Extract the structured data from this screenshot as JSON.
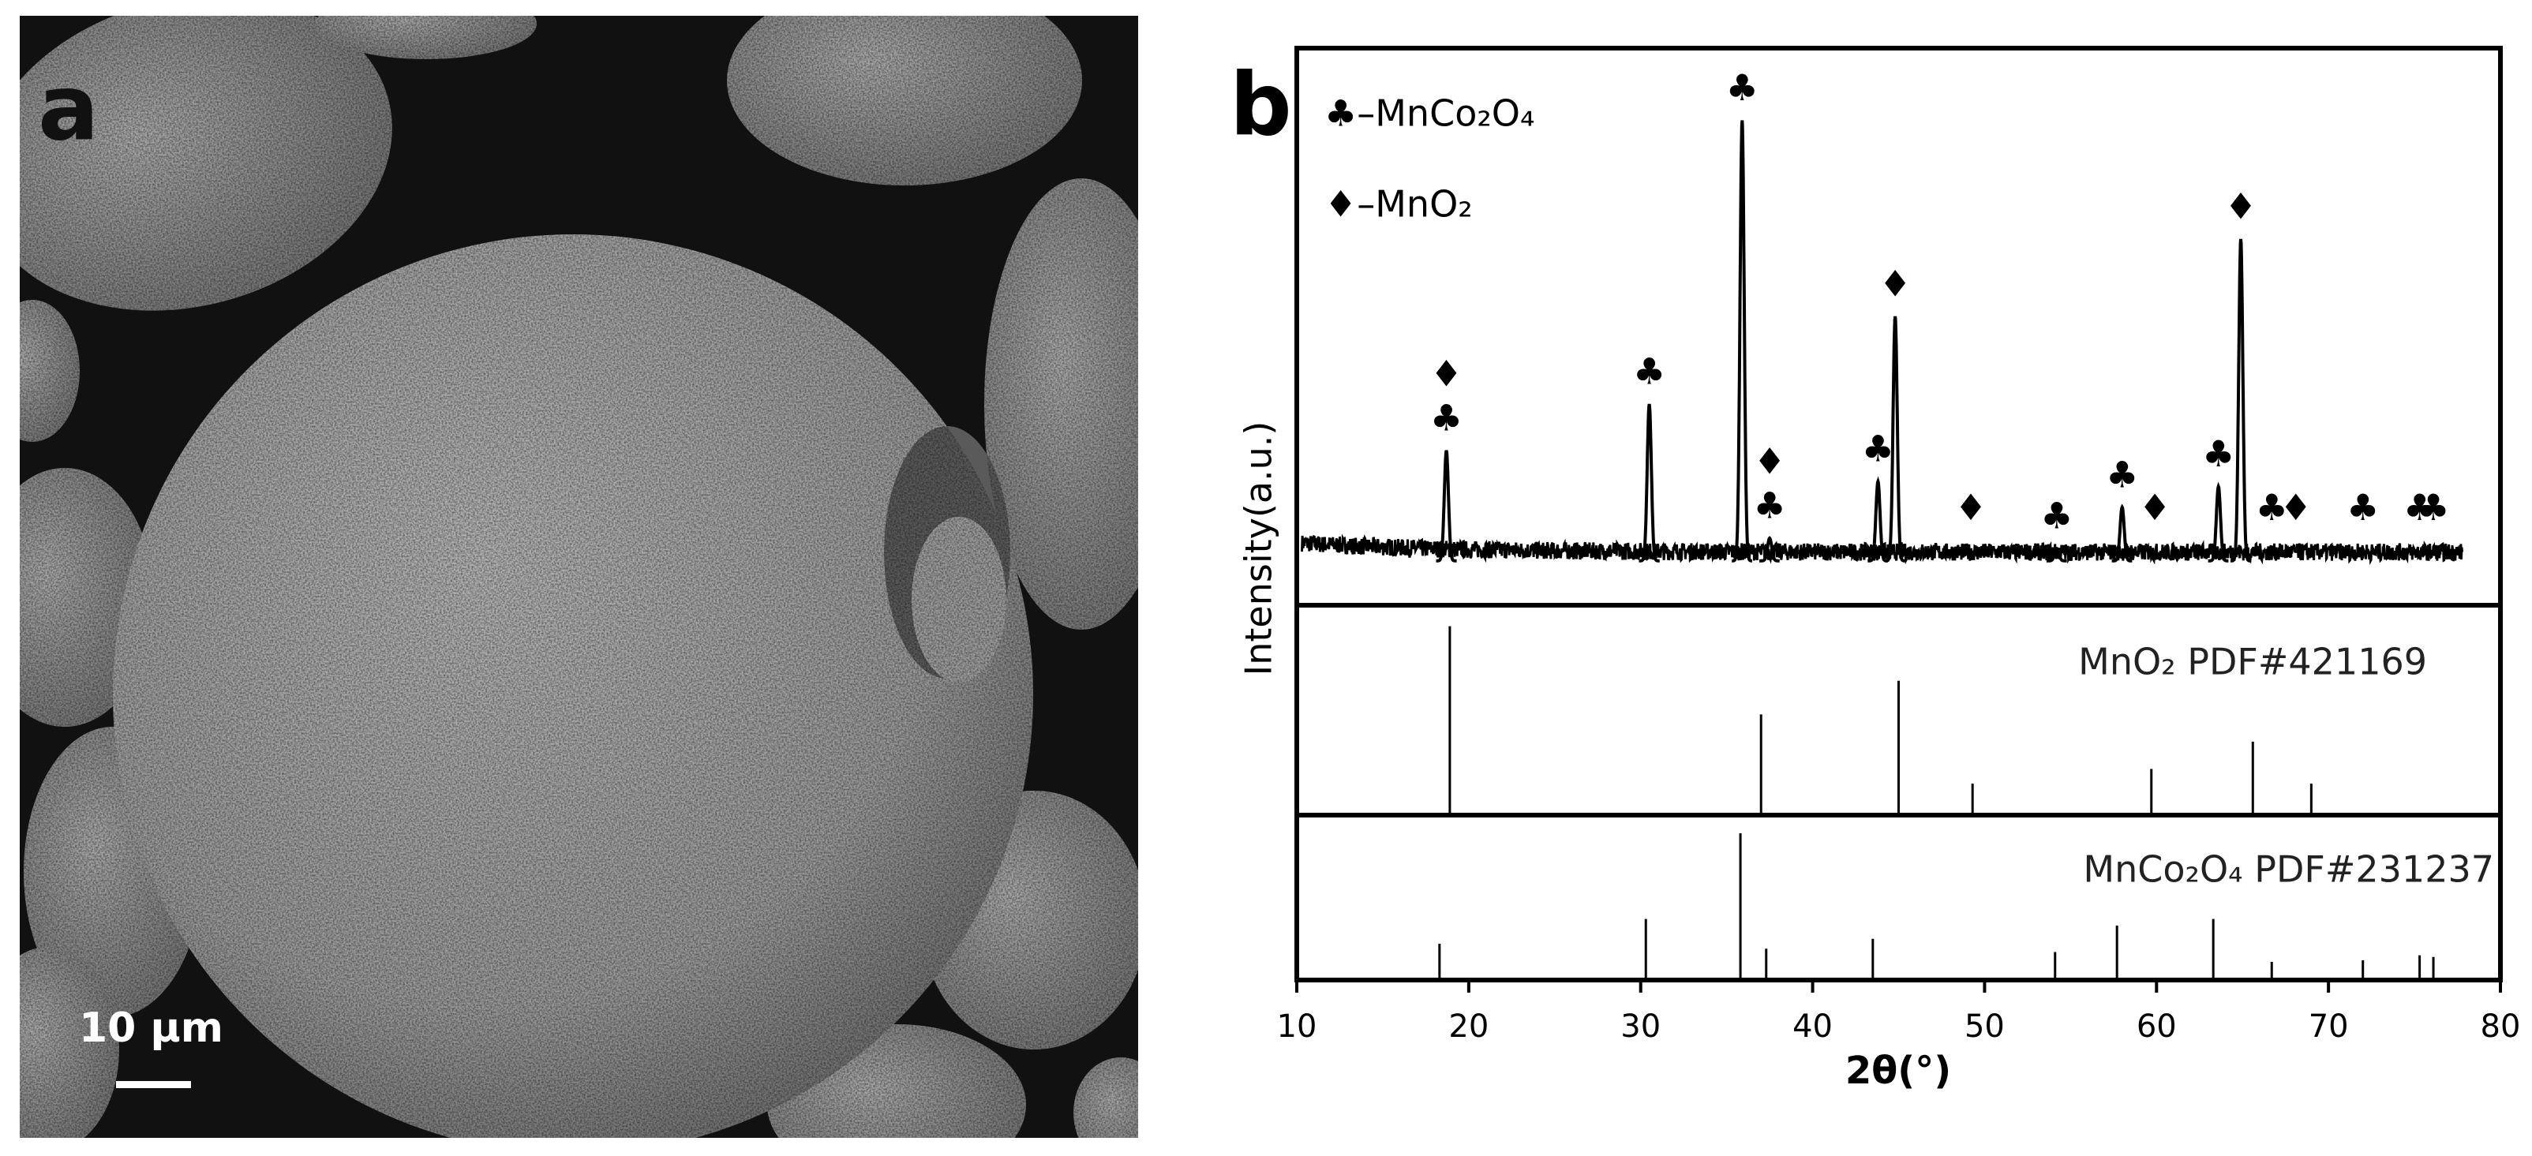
{
  "panel_a": {
    "label": "a",
    "scale_bar": "10 μm"
  },
  "chart_data": {
    "type": "line",
    "panel_label": "b",
    "x_label": "2θ(°)",
    "y_label": "Intensity(a.u.)",
    "xlim": [
      10,
      80
    ],
    "xticks": [
      10,
      20,
      30,
      40,
      50,
      60,
      70,
      80
    ],
    "legend": [
      "♣–MnCo₂O₄",
      "♦–MnO₂"
    ],
    "pattern": {
      "ylim": [
        -8,
        100
      ],
      "color": "#000000",
      "x": [
        18.7,
        30.5,
        35.9,
        37.5,
        43.8,
        44.8,
        54.2,
        58.0,
        63.6,
        64.9
      ],
      "values": [
        22,
        31,
        86,
        5,
        16,
        48,
        3,
        11,
        15,
        63
      ]
    },
    "markers": [
      {
        "x": 18.7,
        "label": "♣"
      },
      {
        "x": 18.7,
        "label": "♦"
      },
      {
        "x": 30.5,
        "label": "♣"
      },
      {
        "x": 35.9,
        "label": "♣"
      },
      {
        "x": 37.5,
        "label": "♣"
      },
      {
        "x": 37.5,
        "label": "♦"
      },
      {
        "x": 43.8,
        "label": "♣"
      },
      {
        "x": 44.8,
        "label": "♦"
      },
      {
        "x": 49.2,
        "label": "♦"
      },
      {
        "x": 54.2,
        "label": "♣"
      },
      {
        "x": 58.0,
        "label": "♣"
      },
      {
        "x": 59.9,
        "label": "♦"
      },
      {
        "x": 63.6,
        "label": "♣"
      },
      {
        "x": 64.9,
        "label": "♦"
      },
      {
        "x": 66.7,
        "label": "♣"
      },
      {
        "x": 68.1,
        "label": "♦"
      },
      {
        "x": 72.0,
        "label": "♣"
      },
      {
        "x": 75.3,
        "label": "♣"
      },
      {
        "x": 76.1,
        "label": "♣"
      }
    ],
    "references": [
      {
        "name": "MnO₂ PDF#421169",
        "ylim": [
          0,
          100
        ],
        "x": [
          18.9,
          37.0,
          45.0,
          49.3,
          59.7,
          65.6,
          69.0
        ],
        "values": [
          90,
          48,
          64,
          15,
          22,
          35,
          15
        ]
      },
      {
        "name": "MnCo₂O₄ PDF#231237",
        "ylim": [
          0,
          100
        ],
        "x": [
          18.3,
          30.3,
          35.8,
          37.3,
          43.5,
          54.1,
          57.7,
          63.3,
          66.7,
          72.0,
          75.3,
          76.1
        ],
        "values": [
          22,
          37,
          89,
          19,
          25,
          17,
          33,
          37,
          11,
          12,
          15,
          14
        ]
      }
    ]
  }
}
